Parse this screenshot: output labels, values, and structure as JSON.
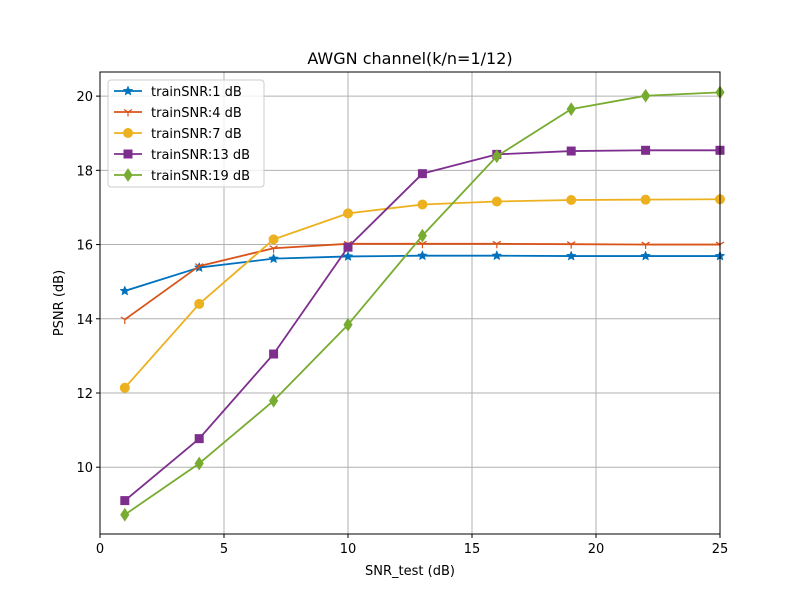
{
  "chart_data": {
    "type": "line",
    "title": "AWGN channel(k/n=1/12)",
    "xlabel": "SNR_test (dB)",
    "ylabel": "PSNR (dB)",
    "xlim": [
      0,
      25
    ],
    "ylim": [
      8.2,
      20.65
    ],
    "xticks": [
      "0",
      "5",
      "10",
      "15",
      "20",
      "25"
    ],
    "yticks": [
      "10",
      "12",
      "14",
      "16",
      "18",
      "20"
    ],
    "grid": true,
    "legend_position": "top-left",
    "x": [
      1,
      4,
      7,
      10,
      13,
      16,
      19,
      22,
      25
    ],
    "series": [
      {
        "name": "trainSNR:1 dB",
        "color": "#0072BD",
        "marker": "star",
        "values": [
          14.75,
          15.38,
          15.62,
          15.68,
          15.7,
          15.7,
          15.69,
          15.69,
          15.69
        ]
      },
      {
        "name": "trainSNR:4 dB",
        "color": "#D95319",
        "marker": "tri-down",
        "values": [
          13.98,
          15.42,
          15.9,
          16.02,
          16.02,
          16.02,
          16.01,
          16.0,
          16.0
        ]
      },
      {
        "name": "trainSNR:7 dB",
        "color": "#EDB120",
        "marker": "circle",
        "values": [
          12.14,
          14.4,
          16.14,
          16.84,
          17.08,
          17.16,
          17.2,
          17.21,
          17.22
        ]
      },
      {
        "name": "trainSNR:13 dB",
        "color": "#7E2F8E",
        "marker": "square",
        "values": [
          9.1,
          10.77,
          13.05,
          15.93,
          17.91,
          18.43,
          18.52,
          18.54,
          18.54
        ]
      },
      {
        "name": "trainSNR:19 dB",
        "color": "#77AC30",
        "marker": "diamond",
        "values": [
          8.72,
          10.1,
          11.79,
          13.84,
          16.24,
          18.38,
          19.65,
          20.01,
          20.1
        ]
      }
    ]
  }
}
